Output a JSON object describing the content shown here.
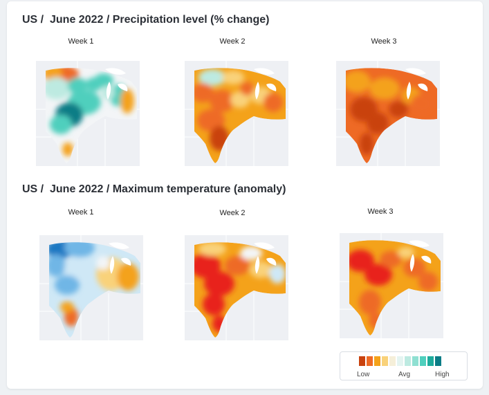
{
  "sections": [
    {
      "title": "US /  June 2022 / Precipitation level (% change)",
      "maps": [
        {
          "week": "Week 1",
          "scheme": "mixed-wet"
        },
        {
          "week": "Week 2",
          "scheme": "dry-orange"
        },
        {
          "week": "Week 3",
          "scheme": "very-dry"
        }
      ]
    },
    {
      "title": "US /  June 2022 / Maximum temperature (anomaly)",
      "maps": [
        {
          "week": "Week 1",
          "scheme": "cool-west"
        },
        {
          "week": "Week 2",
          "scheme": "hot-red"
        },
        {
          "week": "Week 3",
          "scheme": "hot-orange"
        }
      ]
    }
  ],
  "legend": {
    "low": "Low",
    "avg": "Avg",
    "high": "High",
    "colors": [
      "#c9420e",
      "#ee6a25",
      "#f4a21a",
      "#f9d27a",
      "#f5efd9",
      "#e4f4f1",
      "#bdeae1",
      "#8fe0d2",
      "#4fcfbd",
      "#1eab9c",
      "#0b7d86"
    ]
  },
  "palette": {
    "land": "#eef0f4",
    "outline": "#ffffff",
    "dry_dark": "#c9420e",
    "dry": "#ee6a25",
    "dry_light": "#f4a21a",
    "pale": "#f9d27a",
    "neutral": "#f3f5f7",
    "wet_light": "#bdeae1",
    "wet": "#4fcfbd",
    "wet_dark": "#0b7d86",
    "hot": "#e8241c",
    "cool_light": "#cfe8f6",
    "cool": "#6fb6e6",
    "cool_dark": "#1e78c2"
  }
}
